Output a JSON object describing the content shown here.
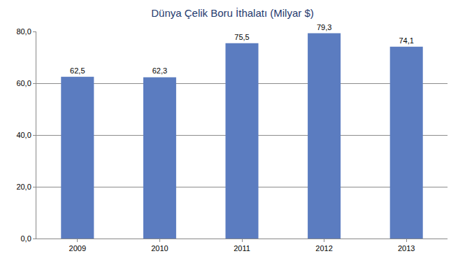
{
  "chart_data": {
    "type": "bar",
    "title": "Dünya Çelik Boru İthalatı (Milyar $)",
    "categories": [
      "2009",
      "2010",
      "2011",
      "2012",
      "2013"
    ],
    "values": [
      62.5,
      62.3,
      75.5,
      79.3,
      74.1
    ],
    "value_labels": [
      "62,5",
      "62,3",
      "75,5",
      "79,3",
      "74,1"
    ],
    "color": "#5b7cc0",
    "ylim": [
      0,
      80
    ],
    "yticks": [
      {
        "value": 0,
        "label": "0,0"
      },
      {
        "value": 20,
        "label": "20,0"
      },
      {
        "value": 40,
        "label": "40,0"
      },
      {
        "value": 60,
        "label": "60,0"
      },
      {
        "value": 80,
        "label": "80,0"
      }
    ],
    "grid": true,
    "data_labels": true
  }
}
